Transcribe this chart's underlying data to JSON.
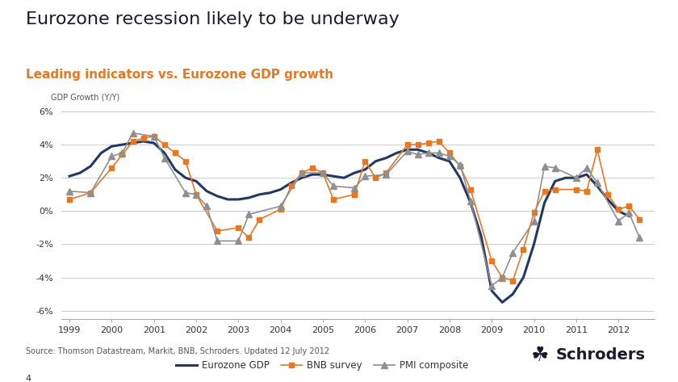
{
  "title": "Eurozone recession likely to be underway",
  "subtitle": "Leading indicators vs. Eurozone GDP growth",
  "ylabel": "GDP Growth (Y/Y)",
  "source": "Source: Thomson Datastream, Markit, BNB, Schroders. Updated 12 July 2012",
  "page_num": "4",
  "ylim": [
    -6.5,
    6.5
  ],
  "yticks": [
    -6,
    -4,
    -2,
    0,
    2,
    4,
    6
  ],
  "ytick_labels": [
    "-6%",
    "-4%",
    "-2%",
    "0%",
    "2%",
    "4%",
    "6%"
  ],
  "background_color": "#ffffff",
  "gdp_color": "#1f3864",
  "bnb_color": "#e87722",
  "pmi_color": "#909090",
  "gdp_x": [
    1999.0,
    1999.25,
    1999.5,
    1999.75,
    2000.0,
    2000.25,
    2000.5,
    2000.75,
    2001.0,
    2001.25,
    2001.5,
    2001.75,
    2002.0,
    2002.25,
    2002.5,
    2002.75,
    2003.0,
    2003.25,
    2003.5,
    2003.75,
    2004.0,
    2004.25,
    2004.5,
    2004.75,
    2005.0,
    2005.25,
    2005.5,
    2005.75,
    2006.0,
    2006.25,
    2006.5,
    2006.75,
    2007.0,
    2007.25,
    2007.5,
    2007.75,
    2008.0,
    2008.25,
    2008.5,
    2008.75,
    2009.0,
    2009.25,
    2009.5,
    2009.75,
    2010.0,
    2010.25,
    2010.5,
    2010.75,
    2011.0,
    2011.25,
    2011.5,
    2011.75,
    2012.0,
    2012.25
  ],
  "gdp_y": [
    2.1,
    2.3,
    2.7,
    3.5,
    3.9,
    4.0,
    4.1,
    4.2,
    4.1,
    3.5,
    2.5,
    2.0,
    1.8,
    1.2,
    0.9,
    0.7,
    0.7,
    0.8,
    1.0,
    1.1,
    1.3,
    1.7,
    2.0,
    2.2,
    2.2,
    2.1,
    2.0,
    2.3,
    2.5,
    3.0,
    3.2,
    3.5,
    3.7,
    3.7,
    3.5,
    3.2,
    3.0,
    2.0,
    0.5,
    -1.5,
    -4.8,
    -5.5,
    -5.0,
    -4.0,
    -2.0,
    0.5,
    1.8,
    2.0,
    2.0,
    2.2,
    1.5,
    0.7,
    0.0,
    -0.3
  ],
  "bnb_x": [
    1999.0,
    1999.5,
    2000.0,
    2000.25,
    2000.5,
    2000.75,
    2001.0,
    2001.25,
    2001.5,
    2001.75,
    2002.0,
    2002.5,
    2003.0,
    2003.25,
    2003.5,
    2004.0,
    2004.25,
    2004.5,
    2004.75,
    2005.0,
    2005.25,
    2005.75,
    2006.0,
    2006.25,
    2006.5,
    2007.0,
    2007.25,
    2007.5,
    2007.75,
    2008.0,
    2008.25,
    2008.5,
    2009.0,
    2009.25,
    2009.5,
    2009.75,
    2010.0,
    2010.25,
    2010.5,
    2011.0,
    2011.25,
    2011.5,
    2011.75,
    2012.0,
    2012.25,
    2012.5
  ],
  "bnb_y": [
    0.7,
    1.1,
    2.6,
    3.4,
    4.2,
    4.4,
    4.5,
    4.0,
    3.5,
    3.0,
    1.0,
    -1.2,
    -1.0,
    -1.6,
    -0.5,
    0.1,
    1.5,
    2.3,
    2.6,
    2.3,
    0.7,
    1.0,
    3.0,
    2.0,
    2.3,
    4.0,
    4.0,
    4.1,
    4.2,
    3.5,
    2.7,
    1.3,
    -3.0,
    -4.0,
    -4.2,
    -2.3,
    -0.1,
    1.2,
    1.3,
    1.3,
    1.2,
    3.7,
    1.0,
    0.1,
    0.3,
    -0.5
  ],
  "pmi_x": [
    1999.0,
    1999.5,
    2000.0,
    2000.25,
    2000.5,
    2001.0,
    2001.25,
    2001.75,
    2002.0,
    2002.25,
    2002.5,
    2003.0,
    2003.25,
    2004.0,
    2004.5,
    2005.0,
    2005.25,
    2005.75,
    2006.0,
    2006.5,
    2007.0,
    2007.25,
    2007.5,
    2007.75,
    2008.0,
    2008.25,
    2008.5,
    2009.0,
    2009.25,
    2009.5,
    2010.0,
    2010.25,
    2010.5,
    2011.0,
    2011.25,
    2011.5,
    2012.0,
    2012.25,
    2012.5
  ],
  "pmi_y": [
    1.2,
    1.1,
    3.3,
    3.5,
    4.7,
    4.5,
    3.2,
    1.1,
    1.0,
    0.3,
    -1.8,
    -1.8,
    -0.2,
    0.3,
    2.3,
    2.3,
    1.5,
    1.4,
    2.1,
    2.2,
    3.6,
    3.4,
    3.5,
    3.5,
    3.3,
    2.8,
    0.6,
    -4.5,
    -4.0,
    -2.5,
    -0.6,
    2.7,
    2.6,
    2.0,
    2.6,
    1.7,
    -0.6,
    -0.1,
    -1.6
  ]
}
